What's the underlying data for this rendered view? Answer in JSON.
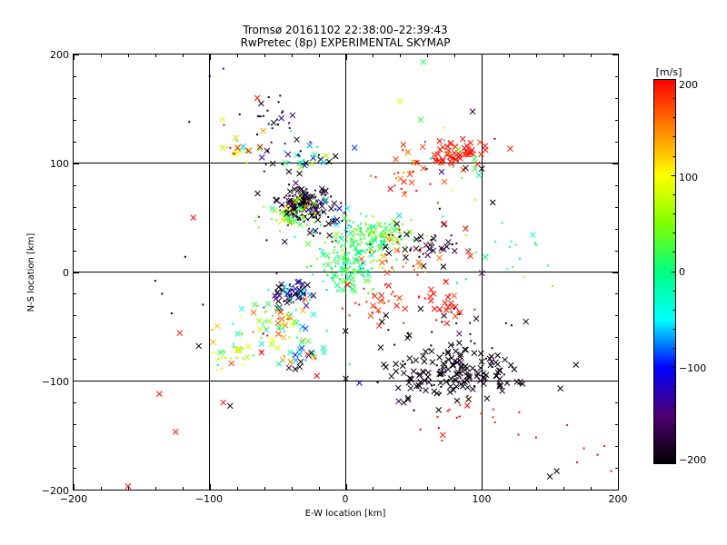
{
  "chart_data": {
    "type": "scatter",
    "title": "Tromsø 20161102 22:38:00–22:39:43",
    "subtitle": "RwPretec (8p) EXPERIMENTAL SKYMAP",
    "xlabel": "E-W location [km]",
    "ylabel": "N-S location [km]",
    "xlim": [
      -200,
      200
    ],
    "ylim": [
      -200,
      200
    ],
    "xticks": [
      "−200",
      "−100",
      "0",
      "100",
      "200"
    ],
    "yticks": [
      "200",
      "100",
      "0",
      "−100",
      "−200"
    ],
    "grid": true,
    "colorbar": {
      "label": "[m/s]",
      "range": [
        -200,
        200
      ],
      "ticks": [
        "200",
        "100",
        "0",
        "−100",
        "−200"
      ]
    },
    "clusters": [
      {
        "cx": -30,
        "cy": 63,
        "sx": 10,
        "sy": 8,
        "n": 160,
        "vmean": -190,
        "vspread": 20,
        "cross": 0.5
      },
      {
        "cx": -40,
        "cy": 52,
        "sx": 12,
        "sy": 6,
        "n": 60,
        "vmean": 50,
        "vspread": 40,
        "cross": 0.4
      },
      {
        "cx": -20,
        "cy": 40,
        "sx": 15,
        "sy": 12,
        "n": 40,
        "vmean": -150,
        "vspread": 80,
        "cross": 0.3
      },
      {
        "cx": -35,
        "cy": 105,
        "sx": 15,
        "sy": 6,
        "n": 40,
        "vmean": -100,
        "vspread": 120,
        "cross": 0.6
      },
      {
        "cx": -55,
        "cy": 140,
        "sx": 12,
        "sy": 12,
        "n": 25,
        "vmean": -170,
        "vspread": 60,
        "cross": 0.1
      },
      {
        "cx": -80,
        "cy": 115,
        "sx": 8,
        "sy": 10,
        "n": 25,
        "vmean": 100,
        "vspread": 90,
        "cross": 0.5
      },
      {
        "cx": 15,
        "cy": 30,
        "sx": 15,
        "sy": 10,
        "n": 150,
        "vmean": 20,
        "vspread": 20,
        "cross": 0.1
      },
      {
        "cx": 0,
        "cy": 0,
        "sx": 12,
        "sy": 12,
        "n": 130,
        "vmean": 10,
        "vspread": 25,
        "cross": 0.15
      },
      {
        "cx": 30,
        "cy": 38,
        "sx": 10,
        "sy": 6,
        "n": 50,
        "vmean": 40,
        "vspread": 20,
        "cross": 0.2
      },
      {
        "cx": 55,
        "cy": 25,
        "sx": 15,
        "sy": 8,
        "n": 45,
        "vmean": -185,
        "vspread": 20,
        "cross": 0.5
      },
      {
        "cx": 40,
        "cy": 10,
        "sx": 20,
        "sy": 15,
        "n": 40,
        "vmean": 170,
        "vspread": 30,
        "cross": 0.2
      },
      {
        "cx": 80,
        "cy": 110,
        "sx": 12,
        "sy": 6,
        "n": 55,
        "vmean": 195,
        "vspread": 10,
        "cross": 0.9
      },
      {
        "cx": 40,
        "cy": 90,
        "sx": 15,
        "sy": 12,
        "n": 25,
        "vmean": 180,
        "vspread": 30,
        "cross": 0.5
      },
      {
        "cx": 60,
        "cy": 95,
        "sx": 25,
        "sy": 25,
        "n": 30,
        "vmean": -30,
        "vspread": 120,
        "cross": 0.2
      },
      {
        "cx": -40,
        "cy": -20,
        "sx": 8,
        "sy": 6,
        "n": 60,
        "vmean": -150,
        "vspread": 60,
        "cross": 0.6
      },
      {
        "cx": -45,
        "cy": -40,
        "sx": 12,
        "sy": 12,
        "n": 50,
        "vmean": 20,
        "vspread": 130,
        "cross": 0.5
      },
      {
        "cx": -60,
        "cy": -55,
        "sx": 15,
        "sy": 10,
        "n": 30,
        "vmean": 80,
        "vspread": 80,
        "cross": 0.5
      },
      {
        "cx": -85,
        "cy": -75,
        "sx": 8,
        "sy": 8,
        "n": 30,
        "vmean": 60,
        "vspread": 40,
        "cross": 0.2
      },
      {
        "cx": -30,
        "cy": -75,
        "sx": 12,
        "sy": 12,
        "n": 35,
        "vmean": 20,
        "vspread": 140,
        "cross": 0.5
      },
      {
        "cx": 20,
        "cy": -30,
        "sx": 15,
        "sy": 12,
        "n": 30,
        "vmean": 190,
        "vspread": 15,
        "cross": 0.5
      },
      {
        "cx": 75,
        "cy": -30,
        "sx": 8,
        "sy": 8,
        "n": 25,
        "vmean": 195,
        "vspread": 10,
        "cross": 0.7
      },
      {
        "cx": 85,
        "cy": -95,
        "sx": 22,
        "sy": 12,
        "n": 130,
        "vmean": -195,
        "vspread": 10,
        "cross": 0.85
      },
      {
        "cx": 60,
        "cy": -90,
        "sx": 20,
        "sy": 15,
        "n": 40,
        "vmean": -195,
        "vspread": 10,
        "cross": 0.8
      },
      {
        "cx": 75,
        "cy": -55,
        "sx": 25,
        "sy": 15,
        "n": 30,
        "vmean": -190,
        "vspread": 20,
        "cross": 0.4
      },
      {
        "cx": 80,
        "cy": -135,
        "sx": 25,
        "sy": 10,
        "n": 20,
        "vmean": 195,
        "vspread": 10,
        "cross": 0.1
      },
      {
        "cx": 110,
        "cy": 20,
        "sx": 25,
        "sy": 20,
        "n": 20,
        "vmean": 10,
        "vspread": 40,
        "cross": 0.1
      }
    ],
    "points": [
      {
        "x": -160,
        "y": -197,
        "v": 195,
        "m": "x"
      },
      {
        "x": -137,
        "y": -112,
        "v": 195,
        "m": "x"
      },
      {
        "x": -125,
        "y": -147,
        "v": 195,
        "m": "x"
      },
      {
        "x": -112,
        "y": 50,
        "v": 195,
        "m": "x"
      },
      {
        "x": -90,
        "y": -120,
        "v": 195,
        "m": "x"
      },
      {
        "x": -85,
        "y": -123,
        "v": -190,
        "m": "x"
      },
      {
        "x": -65,
        "y": 160,
        "v": 195,
        "m": "x"
      },
      {
        "x": -63,
        "y": 115,
        "v": 195,
        "m": "x"
      },
      {
        "x": 150,
        "y": -188,
        "v": -195,
        "m": "x"
      },
      {
        "x": 155,
        "y": -183,
        "v": -195,
        "m": "x"
      },
      {
        "x": 57,
        "y": 193,
        "v": 15,
        "m": "x"
      },
      {
        "x": 55,
        "y": 140,
        "v": 20,
        "m": "x"
      },
      {
        "x": 40,
        "y": 157,
        "v": 90,
        "m": "x"
      },
      {
        "x": 100,
        "y": 95,
        "v": -195,
        "m": "x"
      },
      {
        "x": 95,
        "y": 95,
        "v": 20,
        "m": "x"
      },
      {
        "x": 108,
        "y": 64,
        "v": -195,
        "m": "x"
      },
      {
        "x": 90,
        "y": 19,
        "v": 195,
        "m": "x"
      },
      {
        "x": 88,
        "y": 40,
        "v": 195,
        "m": "x"
      },
      {
        "x": 100,
        "y": -1,
        "v": -160,
        "m": "x"
      },
      {
        "x": -108,
        "y": -68,
        "v": -195,
        "m": "x"
      },
      {
        "x": -122,
        "y": -56,
        "v": 195,
        "m": "x"
      },
      {
        "x": 0,
        "y": -98,
        "v": -195,
        "m": "x"
      },
      {
        "x": 10,
        "y": -102,
        "v": -120,
        "m": "x"
      },
      {
        "x": -90,
        "y": 187,
        "v": -120,
        "m": "dot"
      },
      {
        "x": -115,
        "y": 138,
        "v": -195,
        "m": "dot"
      },
      {
        "x": -140,
        "y": -8,
        "v": -195,
        "m": "dot"
      },
      {
        "x": -135,
        "y": -20,
        "v": -195,
        "m": "dot"
      },
      {
        "x": -128,
        "y": -38,
        "v": -195,
        "m": "dot"
      },
      {
        "x": -118,
        "y": 14,
        "v": -195,
        "m": "dot"
      },
      {
        "x": -105,
        "y": -30,
        "v": -195,
        "m": "dot"
      },
      {
        "x": 175,
        "y": -162,
        "v": 195,
        "m": "dot"
      },
      {
        "x": 185,
        "y": -168,
        "v": 195,
        "m": "dot"
      },
      {
        "x": 190,
        "y": -160,
        "v": 195,
        "m": "dot"
      },
      {
        "x": 195,
        "y": -183,
        "v": 195,
        "m": "dot"
      },
      {
        "x": 170,
        "y": -175,
        "v": 195,
        "m": "dot"
      },
      {
        "x": 110,
        "y": 28,
        "v": 10,
        "m": "dot"
      },
      {
        "x": 125,
        "y": 25,
        "v": 10,
        "m": "dot"
      },
      {
        "x": 140,
        "y": 25,
        "v": 10,
        "m": "dot"
      },
      {
        "x": 115,
        "y": 45,
        "v": 10,
        "m": "dot"
      },
      {
        "x": -100,
        "y": 180,
        "v": -195,
        "m": "dot"
      },
      {
        "x": -78,
        "y": 145,
        "v": -195,
        "m": "dot"
      }
    ]
  }
}
